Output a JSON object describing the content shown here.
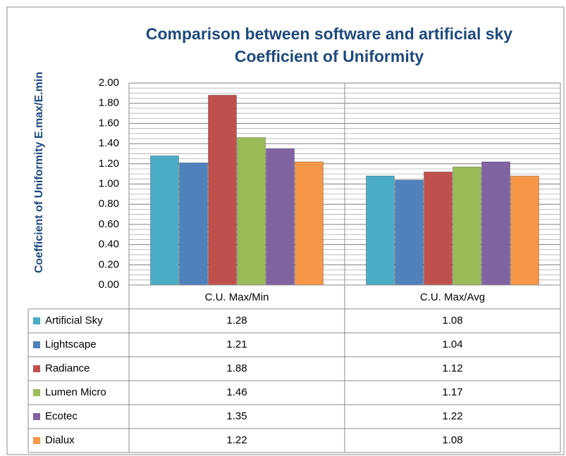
{
  "chart_data": {
    "type": "bar",
    "title": [
      "Comparison between software and artificial sky",
      "Coefficient of Uniformity"
    ],
    "y_label": "Coefficient of Uniformity E.max/E.min",
    "categories": [
      "C.U. Max/Min",
      "C.U. Max/Avg"
    ],
    "series": [
      {
        "name": "Artificial Sky",
        "color": "#4bacc6",
        "values": [
          1.28,
          1.08
        ]
      },
      {
        "name": "Lightscape",
        "color": "#4f81bd",
        "values": [
          1.21,
          1.04
        ]
      },
      {
        "name": "Radiance",
        "color": "#c0504d",
        "values": [
          1.88,
          1.12
        ]
      },
      {
        "name": "Lumen Micro",
        "color": "#9bbb59",
        "values": [
          1.46,
          1.17
        ]
      },
      {
        "name": "Ecotec",
        "color": "#8064a2",
        "values": [
          1.35,
          1.22
        ]
      },
      {
        "name": "Dialux",
        "color": "#f79646",
        "values": [
          1.22,
          1.08
        ]
      }
    ],
    "ylim": [
      0,
      2
    ],
    "yticks": [
      {
        "value": 0,
        "label": "0.00"
      },
      {
        "value": 0.2,
        "label": "0.20"
      },
      {
        "value": 0.4,
        "label": "0.40"
      },
      {
        "value": 0.6,
        "label": "0.60"
      },
      {
        "value": 0.8,
        "label": "0.80"
      },
      {
        "value": 1,
        "label": "1.00"
      },
      {
        "value": 1.2,
        "label": "1.20"
      },
      {
        "value": 1.4,
        "label": "1.40"
      },
      {
        "value": 1.6,
        "label": "1.60"
      },
      {
        "value": 1.8,
        "label": "1.80"
      },
      {
        "value": 2,
        "label": "2.00"
      }
    ],
    "grid": true,
    "data_table": true
  }
}
